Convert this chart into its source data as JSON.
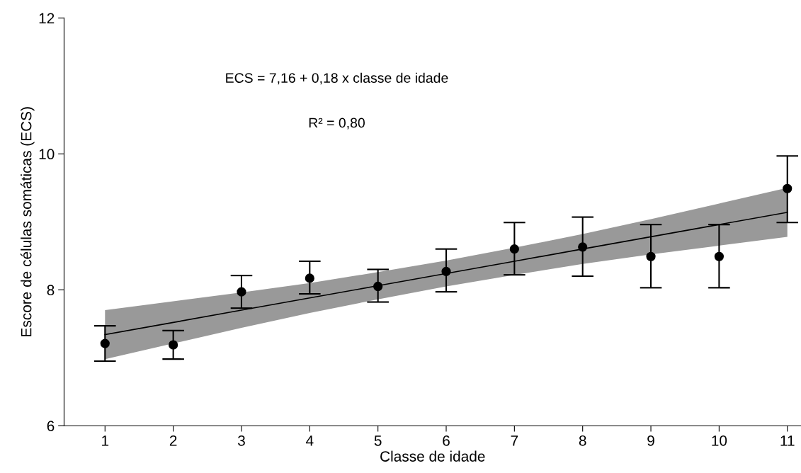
{
  "chart_data": {
    "type": "scatter",
    "xlabel": "Classe de idade",
    "ylabel": "Escore de células somáticas (ECS)",
    "x": [
      1,
      2,
      3,
      4,
      5,
      6,
      7,
      8,
      9,
      10,
      11
    ],
    "xlim": [
      0.4,
      11.2
    ],
    "xticks": [
      1,
      2,
      3,
      4,
      5,
      6,
      7,
      8,
      9,
      10,
      11
    ],
    "ylim": [
      6,
      12
    ],
    "yticks": [
      6,
      8,
      10,
      12
    ],
    "grid": false,
    "legend": false,
    "annotations": [
      "ECS = 7,16 + 0,18 x classe de idade",
      "R² = 0,80"
    ],
    "series": [
      {
        "color": "#000000",
        "marker": "circle",
        "values": [
          7.21,
          7.19,
          7.97,
          8.17,
          8.05,
          8.27,
          8.6,
          8.63,
          8.49,
          8.49,
          9.49
        ],
        "errors": [
          [
            6.95,
            7.47
          ],
          [
            6.98,
            7.4
          ],
          [
            7.73,
            8.21
          ],
          [
            7.94,
            8.42
          ],
          [
            7.82,
            8.3
          ],
          [
            7.97,
            8.6
          ],
          [
            8.22,
            8.99
          ],
          [
            8.2,
            9.07
          ],
          [
            8.03,
            8.96
          ],
          [
            8.03,
            8.96
          ],
          [
            8.99,
            9.97
          ]
        ]
      },
      {
        "type": "line",
        "color": "#000000",
        "marker": "none",
        "line_style": "solid",
        "values": [
          7.34,
          7.52,
          7.7,
          7.88,
          8.06,
          8.24,
          8.42,
          8.6,
          8.78,
          8.96,
          9.14
        ],
        "lower": [
          6.98,
          7.21,
          7.44,
          7.66,
          7.86,
          8.05,
          8.22,
          8.38,
          8.52,
          8.65,
          8.78
        ],
        "upper": [
          7.7,
          7.83,
          7.96,
          8.1,
          8.26,
          8.43,
          8.62,
          8.82,
          9.04,
          9.27,
          9.5
        ]
      }
    ]
  }
}
